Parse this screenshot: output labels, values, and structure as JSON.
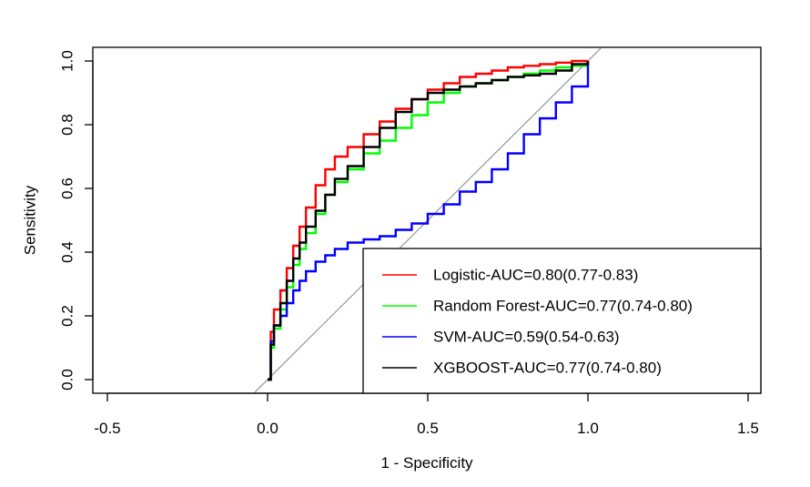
{
  "chart_data": {
    "type": "line",
    "title": "",
    "xlabel": "1 - Specificity",
    "ylabel": "Sensitivity",
    "xlim": [
      -0.5,
      1.5
    ],
    "ylim": [
      0,
      1
    ],
    "xticks": [
      -0.5,
      0.0,
      0.5,
      1.0,
      1.5
    ],
    "xtick_labels": [
      "-0.5",
      "0.0",
      "0.5",
      "1.0",
      "1.5"
    ],
    "yticks": [
      0.0,
      0.2,
      0.4,
      0.6,
      0.8,
      1.0
    ],
    "ytick_labels": [
      "0.0",
      "0.2",
      "0.4",
      "0.6",
      "0.8",
      "1.0"
    ],
    "grid": false,
    "legend_position": "bottom-right",
    "reference_line": {
      "x": [
        0,
        1
      ],
      "y": [
        0,
        1
      ],
      "color": "#9e9e9e"
    },
    "series": [
      {
        "name": "Logistic-AUC=0.80(0.77-0.83)",
        "color": "#ff0000",
        "x": [
          0,
          0.01,
          0.02,
          0.04,
          0.06,
          0.08,
          0.1,
          0.12,
          0.15,
          0.18,
          0.21,
          0.25,
          0.3,
          0.35,
          0.4,
          0.45,
          0.5,
          0.55,
          0.6,
          0.65,
          0.7,
          0.75,
          0.8,
          0.85,
          0.9,
          0.95,
          1.0
        ],
        "y": [
          0,
          0.15,
          0.22,
          0.28,
          0.35,
          0.42,
          0.48,
          0.54,
          0.61,
          0.66,
          0.7,
          0.73,
          0.77,
          0.81,
          0.85,
          0.88,
          0.91,
          0.93,
          0.95,
          0.96,
          0.97,
          0.98,
          0.985,
          0.99,
          0.995,
          1.0,
          1.0
        ]
      },
      {
        "name": "Random Forest-AUC=0.77(0.74-0.80)",
        "color": "#00ff00",
        "x": [
          0,
          0.01,
          0.02,
          0.04,
          0.06,
          0.08,
          0.1,
          0.12,
          0.15,
          0.18,
          0.21,
          0.25,
          0.3,
          0.35,
          0.4,
          0.45,
          0.5,
          0.55,
          0.6,
          0.65,
          0.7,
          0.75,
          0.8,
          0.85,
          0.9,
          0.95,
          1.0
        ],
        "y": [
          0,
          0.1,
          0.16,
          0.22,
          0.29,
          0.36,
          0.41,
          0.46,
          0.52,
          0.58,
          0.62,
          0.66,
          0.71,
          0.75,
          0.79,
          0.83,
          0.87,
          0.9,
          0.92,
          0.93,
          0.94,
          0.95,
          0.96,
          0.97,
          0.98,
          0.985,
          0.99
        ]
      },
      {
        "name": "SVM-AUC=0.59(0.54-0.63)",
        "color": "#0000ff",
        "x": [
          0,
          0.01,
          0.02,
          0.04,
          0.06,
          0.08,
          0.1,
          0.12,
          0.15,
          0.18,
          0.21,
          0.25,
          0.3,
          0.35,
          0.4,
          0.45,
          0.5,
          0.55,
          0.6,
          0.65,
          0.7,
          0.75,
          0.8,
          0.85,
          0.9,
          0.95,
          1.0
        ],
        "y": [
          0,
          0.12,
          0.17,
          0.2,
          0.24,
          0.28,
          0.31,
          0.34,
          0.37,
          0.39,
          0.41,
          0.43,
          0.44,
          0.45,
          0.47,
          0.49,
          0.52,
          0.55,
          0.59,
          0.62,
          0.66,
          0.71,
          0.77,
          0.82,
          0.87,
          0.92,
          1.0
        ]
      },
      {
        "name": "XGBOOST-AUC=0.77(0.74-0.80)",
        "color": "#000000",
        "x": [
          0,
          0.01,
          0.02,
          0.04,
          0.06,
          0.08,
          0.1,
          0.12,
          0.15,
          0.18,
          0.21,
          0.25,
          0.3,
          0.35,
          0.4,
          0.45,
          0.5,
          0.55,
          0.6,
          0.65,
          0.7,
          0.75,
          0.8,
          0.85,
          0.9,
          0.95,
          1.0
        ],
        "y": [
          0,
          0.11,
          0.17,
          0.24,
          0.31,
          0.38,
          0.43,
          0.48,
          0.53,
          0.58,
          0.63,
          0.67,
          0.73,
          0.79,
          0.84,
          0.88,
          0.9,
          0.91,
          0.92,
          0.93,
          0.94,
          0.95,
          0.955,
          0.96,
          0.97,
          0.99,
          1.0
        ]
      }
    ]
  }
}
